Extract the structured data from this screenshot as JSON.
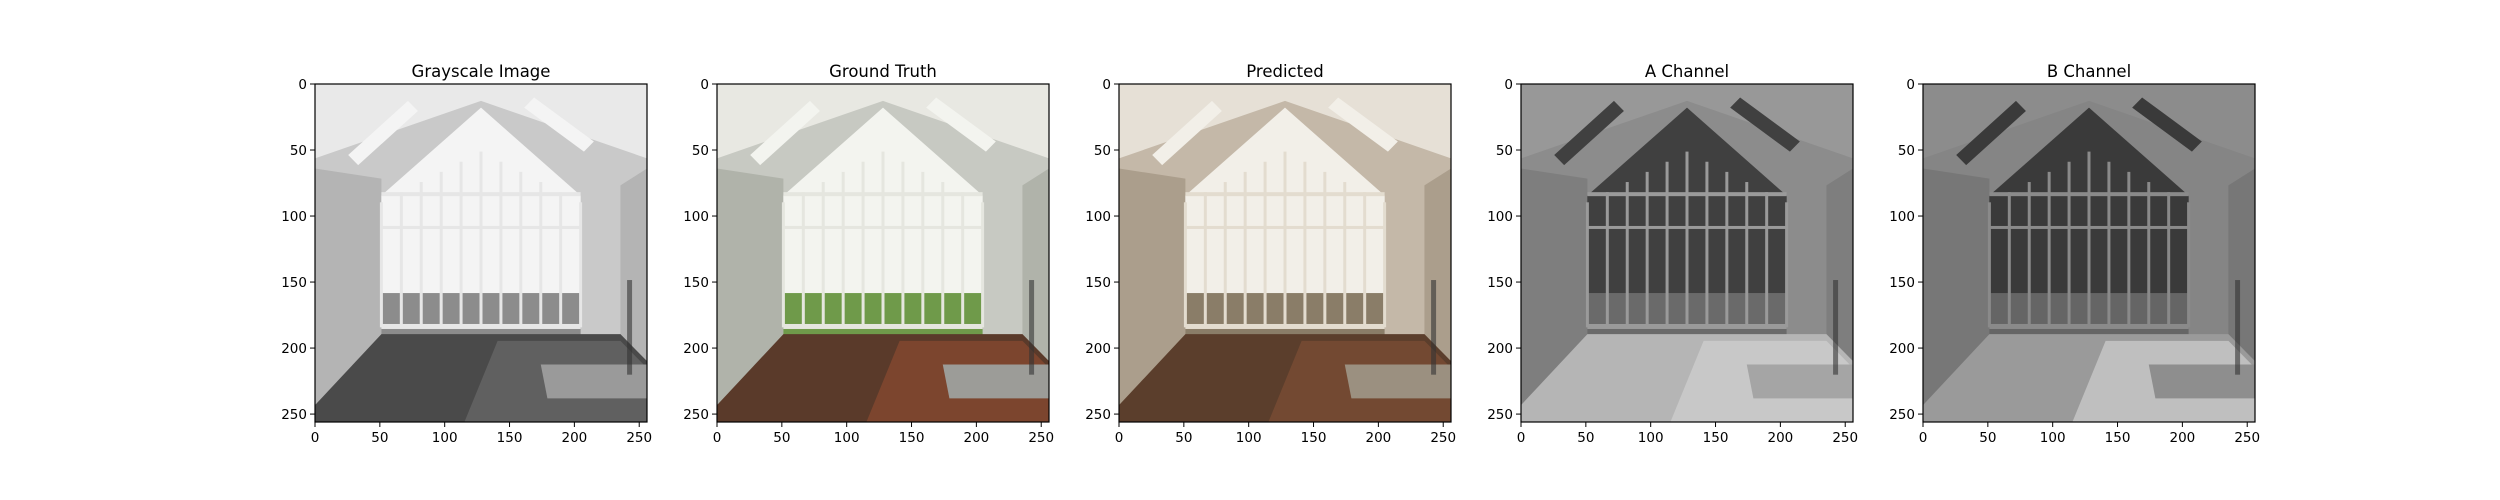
{
  "figure": {
    "panels": [
      {
        "title": "Grayscale Image",
        "tone": "gray",
        "image": "window-room-grayscale"
      },
      {
        "title": "Ground Truth",
        "tone": "color",
        "image": "window-room-ground-truth"
      },
      {
        "title": "Predicted",
        "tone": "sepia",
        "image": "window-room-predicted"
      },
      {
        "title": "A Channel",
        "tone": "channel-a",
        "image": "window-room-a-channel"
      },
      {
        "title": "B Channel",
        "tone": "channel-b",
        "image": "window-room-b-channel"
      }
    ],
    "axes": {
      "xlim": [
        0,
        256
      ],
      "ylim": [
        256,
        0
      ],
      "xticks": [
        "0",
        "50",
        "100",
        "150",
        "200",
        "250"
      ],
      "yticks": [
        "0",
        "50",
        "100",
        "150",
        "200",
        "250"
      ]
    }
  }
}
